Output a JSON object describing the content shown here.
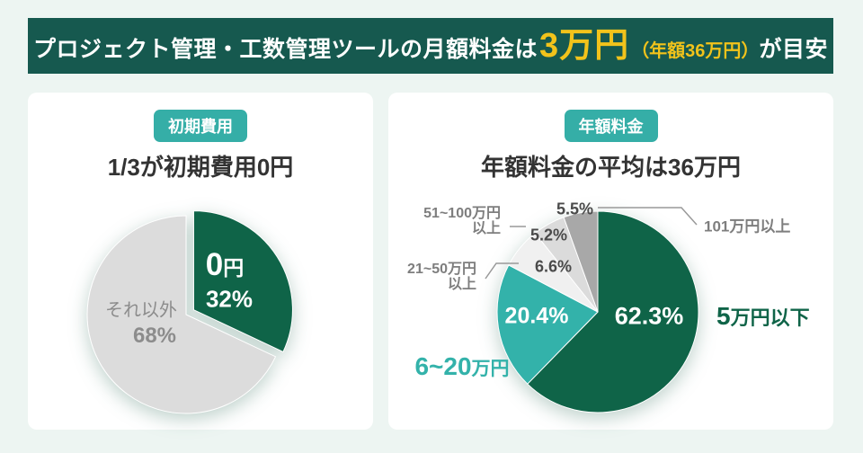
{
  "banner": {
    "text_before": "プロジェクト管理・工数管理ツールの月額料金は",
    "highlight": "3万円",
    "highlight_note": "（年額36万円）",
    "text_after": "が目安",
    "bg_color": "#16594F",
    "highlight_color": "#F2C31B"
  },
  "left_card": {
    "badge": "初期費用",
    "title": "1/3が初期費用0円",
    "labels": {
      "zero_big": "0",
      "zero_small": "円",
      "zero_pct": "32%",
      "other_label": "それ以外",
      "other_pct": "68%"
    }
  },
  "right_card": {
    "badge": "年額料金",
    "title": "年額料金の平均は36万円",
    "labels": {
      "pct_main": "62.3%",
      "pct_teal": "20.4%",
      "main_big": "5",
      "main_small": "万円以下",
      "teal_big": "6~20",
      "teal_small": "万円",
      "pct_55": "5.5%",
      "range_101": "101万円以上",
      "range_51_line1": "51~100万円",
      "range_51_line2": "以上",
      "pct_52": "5.2%",
      "range_21_line1": "21~50万円",
      "range_21_line2": "以上",
      "pct_66": "6.6%"
    }
  },
  "chart_data": [
    {
      "type": "pie",
      "badge": "初期費用",
      "title": "1/3が初期費用0円",
      "start_angle_deg": -90,
      "direction": "clockwise",
      "slices": [
        {
          "label": "0円",
          "value": 32,
          "color": "#0F6448",
          "exploded": true
        },
        {
          "label": "それ以外",
          "value": 68,
          "color": "#DCDCDC",
          "exploded": false
        }
      ]
    },
    {
      "type": "pie",
      "badge": "年額料金",
      "title": "年額料金の平均は36万円",
      "start_angle_deg": -90,
      "direction": "clockwise",
      "slices": [
        {
          "label": "5万円以下",
          "value": 62.3,
          "color": "#0F6448",
          "exploded": false
        },
        {
          "label": "6~20万円",
          "value": 20.4,
          "color": "#33B2AA",
          "exploded": false
        },
        {
          "label": "21~50万円以上",
          "value": 6.6,
          "color": "#F0F0F0",
          "exploded": false
        },
        {
          "label": "51~100万円以上",
          "value": 5.2,
          "color": "#DBDBDB",
          "exploded": false
        },
        {
          "label": "101万円以上",
          "value": 5.5,
          "color": "#A8A8A8",
          "exploded": false
        }
      ]
    }
  ]
}
